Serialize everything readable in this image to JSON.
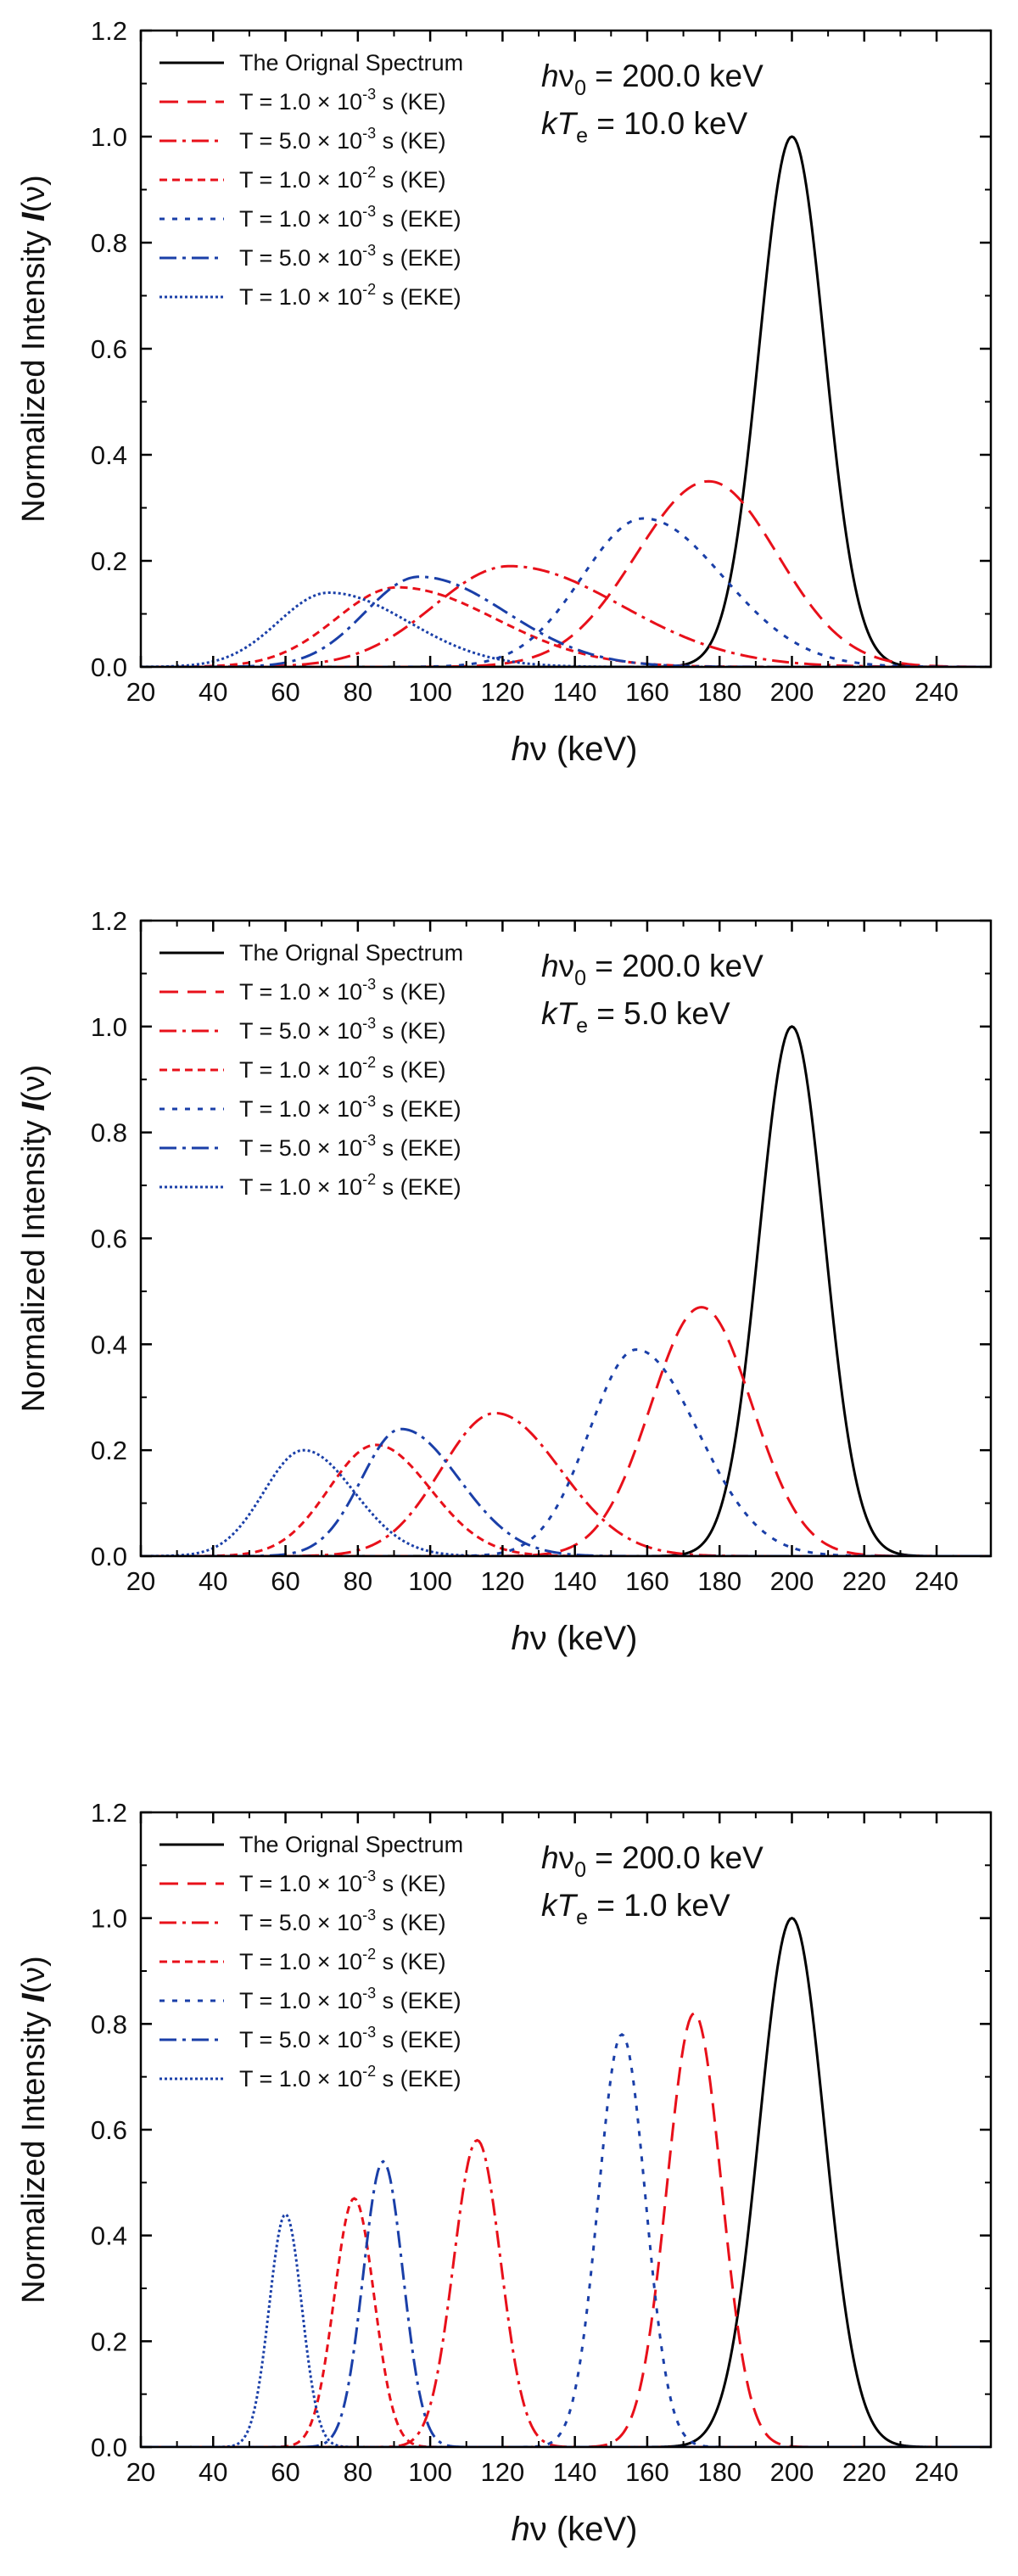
{
  "chart_data": [
    {
      "type": "line",
      "title": "",
      "xlabel": "hν   (keV)",
      "ylabel": "Normalized Intensity  I(ν)",
      "xlim": [
        20,
        255
      ],
      "ylim": [
        0,
        1.2
      ],
      "xticks": [
        20,
        40,
        60,
        80,
        100,
        120,
        140,
        160,
        180,
        200,
        220,
        240
      ],
      "yticks": [
        0.0,
        0.2,
        0.4,
        0.6,
        0.8,
        1.0,
        1.2
      ],
      "legend_position": "top-left",
      "annotations": [
        "hν0 = 200.0 keV",
        "kTe = 10.0 keV"
      ],
      "series": [
        {
          "name": "The Orignal Spectrum",
          "color": "#000000",
          "style": "solid",
          "peak_x": 200,
          "peak_y": 1.0,
          "left_width": 9,
          "right_width": 9
        },
        {
          "name": "T = 1.0 × 10-3 s (KE)",
          "color": "#e8101a",
          "style": "long-dash",
          "peak_x": 177,
          "peak_y": 0.35,
          "left_width": 20,
          "right_width": 19
        },
        {
          "name": "T = 5.0 × 10-3 s (KE)",
          "color": "#e8101a",
          "style": "dash-dot",
          "peak_x": 122,
          "peak_y": 0.19,
          "left_width": 21,
          "right_width": 31
        },
        {
          "name": "T = 1.0 × 10-2 s (KE)",
          "color": "#e8101a",
          "style": "short-dash",
          "peak_x": 91,
          "peak_y": 0.15,
          "left_width": 17,
          "right_width": 27
        },
        {
          "name": "T = 1.0 × 10-3 s (EKE)",
          "color": "#1a3fa8",
          "style": "dotted-dash",
          "peak_x": 159,
          "peak_y": 0.28,
          "left_width": 17,
          "right_width": 22
        },
        {
          "name": "T = 5.0 × 10-3 s (EKE)",
          "color": "#1a3fa8",
          "style": "dash-dot",
          "peak_x": 97,
          "peak_y": 0.17,
          "left_width": 15,
          "right_width": 24
        },
        {
          "name": "T = 1.0 × 10-2 s (EKE)",
          "color": "#1a3fa8",
          "style": "dotted",
          "peak_x": 72,
          "peak_y": 0.14,
          "left_width": 14,
          "right_width": 22
        }
      ]
    },
    {
      "type": "line",
      "title": "",
      "xlabel": "hν   (keV)",
      "ylabel": "Normalized Intensity  I(ν)",
      "xlim": [
        20,
        255
      ],
      "ylim": [
        0,
        1.2
      ],
      "xticks": [
        20,
        40,
        60,
        80,
        100,
        120,
        140,
        160,
        180,
        200,
        220,
        240
      ],
      "yticks": [
        0.0,
        0.2,
        0.4,
        0.6,
        0.8,
        1.0,
        1.2
      ],
      "legend_position": "top-left",
      "annotations": [
        "hν0 = 200.0 keV",
        "kTe = 5.0 keV"
      ],
      "series": [
        {
          "name": "The Orignal Spectrum",
          "color": "#000000",
          "style": "solid",
          "peak_x": 200,
          "peak_y": 1.0,
          "left_width": 9,
          "right_width": 9
        },
        {
          "name": "T = 1.0 × 10-3 s (KE)",
          "color": "#e8101a",
          "style": "long-dash",
          "peak_x": 175,
          "peak_y": 0.47,
          "left_width": 14,
          "right_width": 14
        },
        {
          "name": "T = 5.0 × 10-3 s (KE)",
          "color": "#e8101a",
          "style": "dash-dot",
          "peak_x": 118,
          "peak_y": 0.27,
          "left_width": 15,
          "right_width": 18
        },
        {
          "name": "T = 1.0 × 10-2 s (KE)",
          "color": "#e8101a",
          "style": "short-dash",
          "peak_x": 85,
          "peak_y": 0.21,
          "left_width": 13,
          "right_width": 15
        },
        {
          "name": "T = 1.0 × 10-3 s (EKE)",
          "color": "#1a3fa8",
          "style": "dotted-dash",
          "peak_x": 157,
          "peak_y": 0.39,
          "left_width": 13,
          "right_width": 17
        },
        {
          "name": "T = 5.0 × 10-3 s (EKE)",
          "color": "#1a3fa8",
          "style": "dash-dot",
          "peak_x": 92,
          "peak_y": 0.24,
          "left_width": 11,
          "right_width": 16
        },
        {
          "name": "T = 1.0 × 10-2 s (EKE)",
          "color": "#1a3fa8",
          "style": "dotted",
          "peak_x": 65,
          "peak_y": 0.2,
          "left_width": 11,
          "right_width": 14
        }
      ]
    },
    {
      "type": "line",
      "title": "",
      "xlabel": "hν   (keV)",
      "ylabel": "Normalized Intensity  I(ν)",
      "xlim": [
        20,
        255
      ],
      "ylim": [
        0,
        1.2
      ],
      "xticks": [
        20,
        40,
        60,
        80,
        100,
        120,
        140,
        160,
        180,
        200,
        220,
        240
      ],
      "yticks": [
        0.0,
        0.2,
        0.4,
        0.6,
        0.8,
        1.0,
        1.2
      ],
      "legend_position": "top-left",
      "annotations": [
        "hν0 = 200.0 keV",
        "kTe = 1.0 keV"
      ],
      "series": [
        {
          "name": "The Orignal Spectrum",
          "color": "#000000",
          "style": "solid",
          "peak_x": 200,
          "peak_y": 1.0,
          "left_width": 9,
          "right_width": 9
        },
        {
          "name": "T = 1.0 × 10-3 s (KE)",
          "color": "#e8101a",
          "style": "long-dash",
          "peak_x": 173,
          "peak_y": 0.82,
          "left_width": 7.5,
          "right_width": 7.5
        },
        {
          "name": "T = 5.0 × 10-3 s (KE)",
          "color": "#e8101a",
          "style": "dash-dot",
          "peak_x": 113,
          "peak_y": 0.58,
          "left_width": 6.5,
          "right_width": 6.5
        },
        {
          "name": "T = 1.0 × 10-2 s (KE)",
          "color": "#e8101a",
          "style": "short-dash",
          "peak_x": 79,
          "peak_y": 0.47,
          "left_width": 5.5,
          "right_width": 5.5
        },
        {
          "name": "T = 1.0 × 10-3 s (EKE)",
          "color": "#1a3fa8",
          "style": "dotted-dash",
          "peak_x": 153,
          "peak_y": 0.78,
          "left_width": 6.5,
          "right_width": 6.5
        },
        {
          "name": "T = 5.0 × 10-3 s (EKE)",
          "color": "#1a3fa8",
          "style": "dash-dot",
          "peak_x": 87,
          "peak_y": 0.54,
          "left_width": 5.5,
          "right_width": 5.5
        },
        {
          "name": "T = 1.0 × 10-2 s (EKE)",
          "color": "#1a3fa8",
          "style": "dotted",
          "peak_x": 60,
          "peak_y": 0.44,
          "left_width": 4.5,
          "right_width": 4.5
        }
      ]
    }
  ]
}
